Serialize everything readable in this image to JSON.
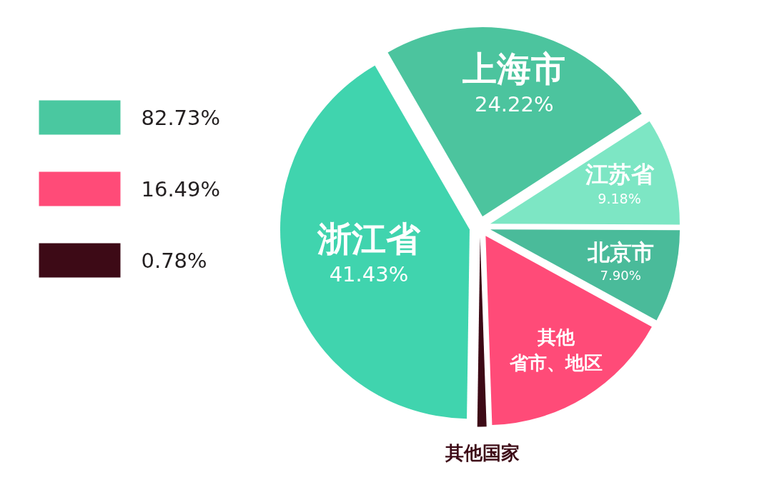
{
  "chart_data": [
    {
      "type": "other",
      "categories": [
        "82.73%",
        "16.49%",
        "0.78%"
      ],
      "colors": [
        "#4ac8a0",
        "#ff4b78",
        "#3d0a16"
      ]
    },
    {
      "type": "pie",
      "categories": [
        "上海市",
        "江苏省",
        "北京市",
        "其他省市、地区",
        "其他国家",
        "浙江省"
      ],
      "values": [
        24.22,
        9.18,
        7.9,
        16.49,
        0.78,
        41.43
      ],
      "colors": [
        "#4cc49e",
        "#7de6c4",
        "#4abb9a",
        "#ff4b78",
        "#3d0a16",
        "#40d4ae"
      ],
      "value_labels": [
        "24.22%",
        "9.18%",
        "7.90%",
        null,
        null,
        "41.43%"
      ]
    }
  ]
}
